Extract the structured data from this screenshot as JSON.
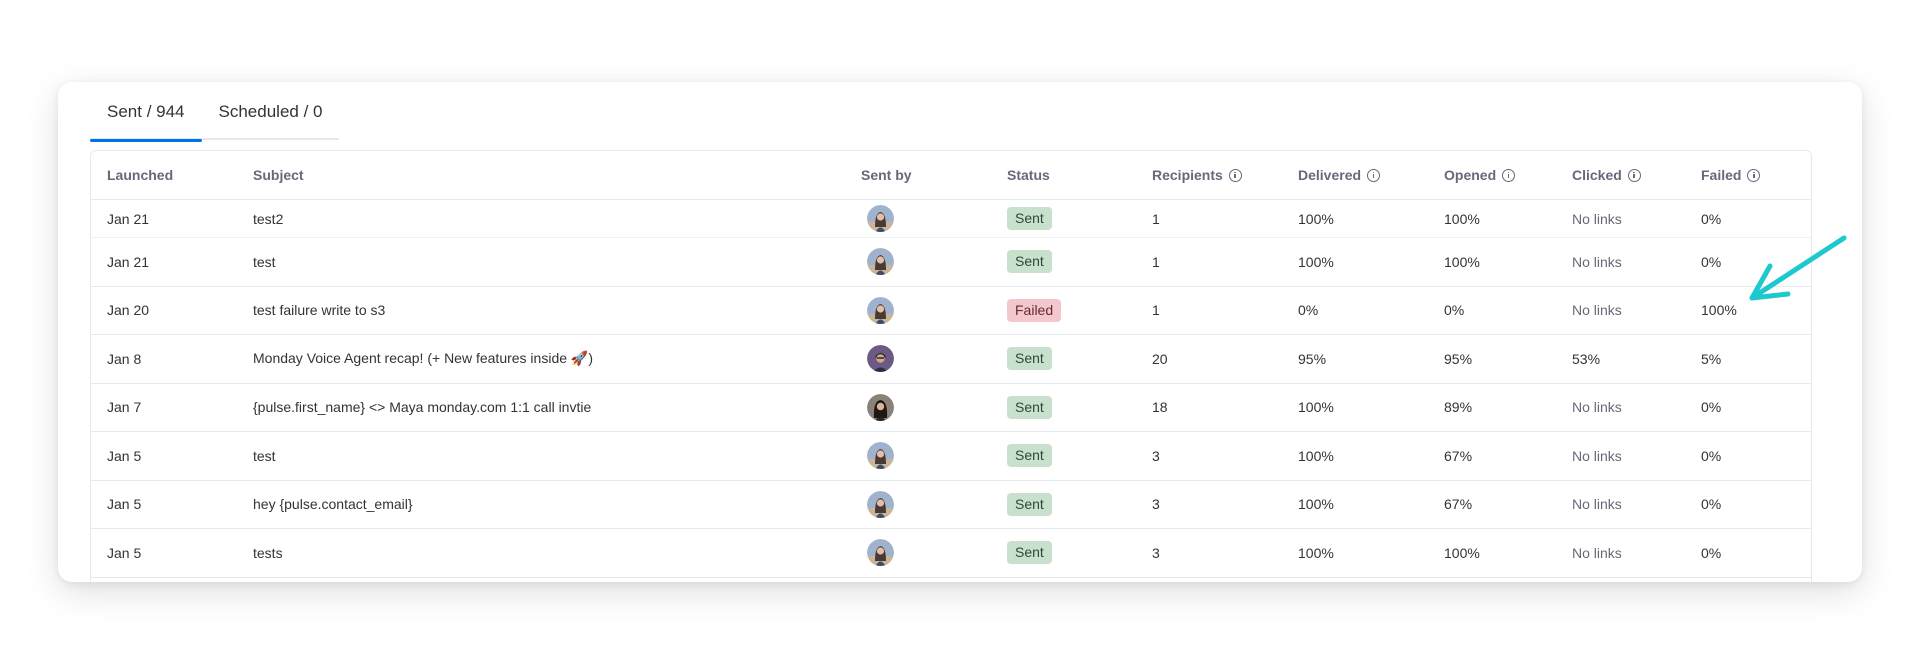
{
  "tabs": [
    {
      "label": "Sent / 944",
      "active": true
    },
    {
      "label": "Scheduled / 0",
      "active": false
    }
  ],
  "columns": {
    "launched": "Launched",
    "subject": "Subject",
    "sent_by": "Sent by",
    "status": "Status",
    "recipients": "Recipients",
    "delivered": "Delivered",
    "opened": "Opened",
    "clicked": "Clicked",
    "failed": "Failed"
  },
  "rows": [
    {
      "launched": "Jan 21",
      "subject": "test2",
      "avatar": "woman-light",
      "status": "Sent",
      "recipients": "1",
      "delivered": "100%",
      "opened": "100%",
      "clicked": "No links",
      "failed": "0%"
    },
    {
      "launched": "Jan 21",
      "subject": "test",
      "avatar": "woman-light",
      "status": "Sent",
      "recipients": "1",
      "delivered": "100%",
      "opened": "100%",
      "clicked": "No links",
      "failed": "0%"
    },
    {
      "launched": "Jan 20",
      "subject": "test failure write to s3",
      "avatar": "woman-light",
      "status": "Failed",
      "recipients": "1",
      "delivered": "0%",
      "opened": "0%",
      "clicked": "No links",
      "failed": "100%"
    },
    {
      "launched": "Jan 8",
      "subject": "Monday Voice Agent recap! (+ New features inside 🚀)",
      "avatar": "man-purple",
      "status": "Sent",
      "recipients": "20",
      "delivered": "95%",
      "opened": "95%",
      "clicked": "53%",
      "failed": "5%"
    },
    {
      "launched": "Jan 7",
      "subject": "{pulse.first_name} <> Maya monday.com 1:1 call invtie",
      "avatar": "woman-dark",
      "status": "Sent",
      "recipients": "18",
      "delivered": "100%",
      "opened": "89%",
      "clicked": "No links",
      "failed": "0%"
    },
    {
      "launched": "Jan 5",
      "subject": "test",
      "avatar": "woman-light",
      "status": "Sent",
      "recipients": "3",
      "delivered": "100%",
      "opened": "67%",
      "clicked": "No links",
      "failed": "0%"
    },
    {
      "launched": "Jan 5",
      "subject": "hey {pulse.contact_email}",
      "avatar": "woman-light",
      "status": "Sent",
      "recipients": "3",
      "delivered": "100%",
      "opened": "67%",
      "clicked": "No links",
      "failed": "0%"
    },
    {
      "launched": "Jan 5",
      "subject": "tests",
      "avatar": "woman-light",
      "status": "Sent",
      "recipients": "3",
      "delivered": "100%",
      "opened": "100%",
      "clicked": "No links",
      "failed": "0%"
    }
  ],
  "colors": {
    "accent": "#0073ea",
    "sent_badge": "#c9e0cd",
    "failed_badge": "#f3c8cd",
    "annotation_arrow": "#1ec8cf"
  },
  "annotation": {
    "icon": "arrow-icon",
    "points_to": "failed-cell"
  }
}
